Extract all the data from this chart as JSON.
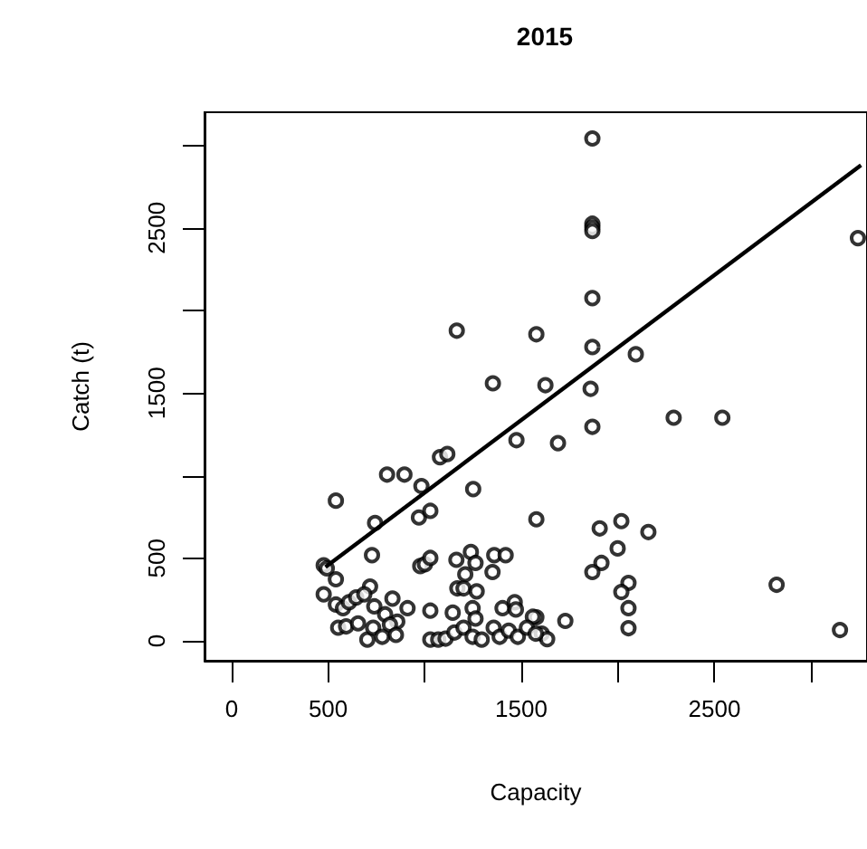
{
  "chart_data": {
    "type": "scatter",
    "title": "2015",
    "xlabel": "Capacity",
    "ylabel": "Catch (t)",
    "xlim": [
      -140,
      3290
    ],
    "ylim": [
      -120,
      3200
    ],
    "xticks": [
      0,
      500,
      {
        "value": 1000,
        "label": null
      },
      1500,
      {
        "value": 2000,
        "label": null
      },
      2500,
      {
        "value": 3000,
        "label": null
      }
    ],
    "yticks": [
      0,
      500,
      {
        "value": 1000,
        "label": null
      },
      1500,
      {
        "value": 2000,
        "label": null
      },
      2500,
      {
        "value": 3000,
        "label": null
      }
    ],
    "grid": false,
    "marker": "circle",
    "series": [
      {
        "color": "#000000",
        "x": [
          1868,
          1868,
          1868,
          1868,
          1868,
          1578,
          1868,
          2093,
          1625,
          1859,
          3243,
          1166,
          1353,
          1868,
          1690,
          2289,
          2541,
          1578,
          1906,
          2018,
          2158,
          1999,
          1915,
          1868,
          2055,
          2018,
          2055,
          2055,
          2822,
          3150,
          1578,
          1728,
          1606,
          1634,
          1475,
          1079,
          1117,
          805,
          895,
          983,
          1251,
          540,
          743,
          970,
          1029,
          727,
          477,
          493,
          540,
          977,
          1001,
          1029,
          1164,
          1239,
          1263,
          1351,
          1360,
          1419,
          1210,
          1169,
          1201,
          1269,
          717,
          477,
          540,
          577,
          608,
          645,
          687,
          739,
          833,
          911,
          795,
          858,
          1029,
          1145,
          1248,
          1263,
          1403,
          1466,
          1472,
          1560,
          552,
          593,
          655,
          703,
          733,
          780,
          820,
          851,
          1029,
          1070,
          1108,
          1154,
          1201,
          1248,
          1295,
          1357,
          1388,
          1435,
          1482,
          1529,
          1575
        ],
        "values": [
          3041,
          2525,
          2503,
          2481,
          2075,
          1856,
          1779,
          1735,
          1548,
          1526,
          2438,
          1878,
          1559,
          1296,
          1197,
          1351,
          1351,
          736,
          681,
          725,
          659,
          560,
          472,
          417,
          351,
          296,
          198,
          77,
          340,
          66,
          143,
          121,
          44,
          11,
          1215,
          1112,
          1131,
          1007,
          1007,
          937,
          919,
          849,
          714,
          747,
          787,
          519,
          458,
          439,
          373,
          453,
          464,
          502,
          491,
          538,
          472,
          417,
          519,
          519,
          403,
          318,
          318,
          300,
          329,
          282,
          220,
          198,
          234,
          263,
          282,
          209,
          256,
          198,
          161,
          117,
          183,
          171,
          198,
          135,
          198,
          234,
          190,
          146,
          80,
          88,
          106,
          8,
          80,
          25,
          99,
          36,
          8,
          8,
          14,
          51,
          80,
          25,
          8,
          80,
          25,
          62,
          25,
          80,
          44
        ]
      },
      {
        "type": "line",
        "color": "#000000",
        "marker": "none",
        "line_style": "solid",
        "x": [
          486,
          3259
        ],
        "values": [
          447,
          2880
        ]
      }
    ]
  }
}
